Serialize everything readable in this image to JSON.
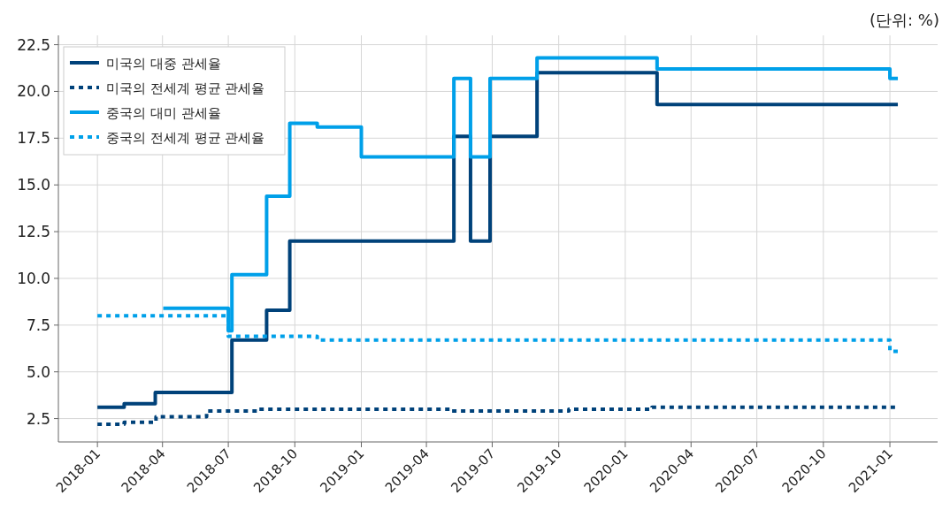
{
  "chart_data": {
    "type": "step",
    "xlim": [
      "2017-11-08",
      "2021-03-08"
    ],
    "ylim": [
      1.25,
      23
    ],
    "xticks": [
      "2018-01",
      "2018-04",
      "2018-07",
      "2018-10",
      "2019-01",
      "2019-04",
      "2019-07",
      "2019-10",
      "2020-01",
      "2020-04",
      "2020-07",
      "2020-10",
      "2021-01"
    ],
    "yticks": [
      2.5,
      {
        "value": 5,
        "label": "5.0"
      },
      7.5,
      {
        "value": 10,
        "label": "10.0"
      },
      12.5,
      {
        "value": 15,
        "label": "15.0"
      },
      17.5,
      {
        "value": 20,
        "label": "20.0"
      },
      22.5
    ],
    "grid": true,
    "legend": "top left",
    "annotations": [
      "(단위:  %)"
    ],
    "series": [
      {
        "name": "미국의 대중 관세율",
        "color": "#00427a",
        "line_style": "solid",
        "x": [
          "2018-01-01",
          "2018-02-07",
          "2018-03-22",
          "2018-07-06",
          "2018-08-23",
          "2018-09-24",
          "2019-05-09",
          "2019-06-01",
          "2019-06-28",
          "2019-09-01",
          "2020-02-14",
          "2021-01-12"
        ],
        "values": [
          3.1,
          3.3,
          3.9,
          6.7,
          8.3,
          12.0,
          17.6,
          12.0,
          17.6,
          21.0,
          19.3,
          19.3
        ]
      },
      {
        "name": "미국의 전세계 평균 관세율",
        "color": "#00427a",
        "line_style": "dotted",
        "x": [
          "2018-01-01",
          "2018-02-07",
          "2018-03-23",
          "2018-06-01",
          "2018-08-11",
          "2019-05-05",
          "2019-10-15",
          "2020-02-07",
          "2021-01-12"
        ],
        "values": [
          2.2,
          2.3,
          2.6,
          2.9,
          3.0,
          2.9,
          3.0,
          3.1,
          3.1
        ]
      },
      {
        "name": "중국의 대미 관세율",
        "color": "#00a0e9",
        "line_style": "solid",
        "x": [
          "2018-04-02",
          "2018-07-01",
          "2018-07-06",
          "2018-08-23",
          "2018-09-24",
          "2018-11-01",
          "2019-01-01",
          "2019-05-09",
          "2019-06-01",
          "2019-06-28",
          "2019-09-01",
          "2020-02-14",
          "2021-01-01",
          "2021-01-12"
        ],
        "values": [
          8.4,
          7.2,
          10.2,
          14.4,
          18.3,
          18.1,
          16.5,
          20.7,
          16.5,
          20.7,
          21.8,
          21.2,
          20.7,
          20.7
        ]
      },
      {
        "name": "중국의 전세계 평균 관세율",
        "color": "#00a0e9",
        "line_style": "dotted",
        "x": [
          "2018-01-01",
          "2018-07-01",
          "2018-11-01",
          "2021-01-01",
          "2021-01-12"
        ],
        "values": [
          8.0,
          6.9,
          6.7,
          6.1,
          6.1
        ]
      }
    ]
  }
}
